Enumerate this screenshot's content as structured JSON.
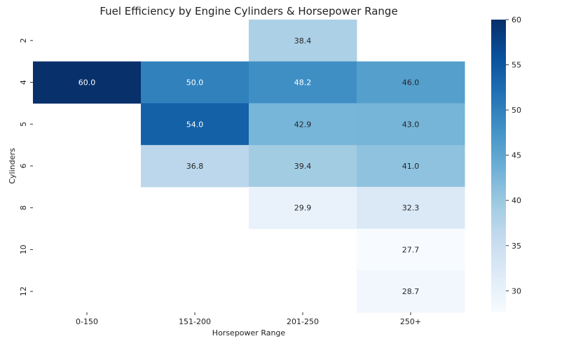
{
  "chart_data": {
    "type": "heatmap",
    "title": "Fuel Efficiency by Engine Cylinders & Horsepower Range",
    "xlabel": "Horsepower Range",
    "ylabel": "Cylinders",
    "x_categories": [
      "0-150",
      "151-200",
      "201-250",
      "250+"
    ],
    "y_categories": [
      "2",
      "4",
      "5",
      "6",
      "8",
      "10",
      "12"
    ],
    "values": [
      [
        null,
        null,
        38.4,
        null
      ],
      [
        60.0,
        50.0,
        48.2,
        46.0
      ],
      [
        null,
        54.0,
        42.9,
        43.0
      ],
      [
        null,
        36.8,
        39.4,
        41.0
      ],
      [
        null,
        null,
        29.9,
        32.3
      ],
      [
        null,
        null,
        null,
        27.7
      ],
      [
        null,
        null,
        null,
        28.7
      ]
    ],
    "colorbar": {
      "min": 27.7,
      "max": 60,
      "ticks": [
        30,
        35,
        40,
        45,
        50,
        55,
        60
      ],
      "colormap": "Blues"
    }
  }
}
